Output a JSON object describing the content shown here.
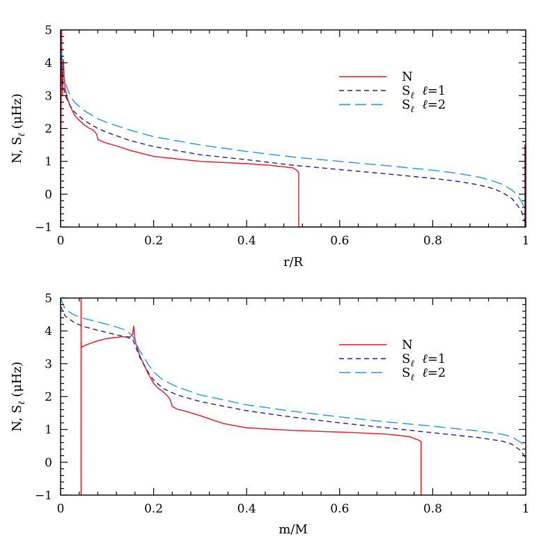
{
  "chart_data": [
    {
      "type": "line",
      "xlabel": "r/R",
      "ylabel": "N, Sℓ (μHz)",
      "xlim": [
        0,
        1
      ],
      "ylim": [
        -1,
        5
      ],
      "xticks": [
        0,
        0.2,
        0.4,
        0.6,
        0.8,
        1
      ],
      "xtick_labels": [
        "0",
        "0.2",
        "0.4",
        "0.6",
        "0.8",
        "1"
      ],
      "yticks": [
        -1,
        0,
        1,
        2,
        3,
        4,
        5
      ],
      "ytick_labels": [
        "−1",
        "0",
        "1",
        "2",
        "3",
        "4",
        "5"
      ],
      "legend_position": "upper-right",
      "series": [
        {
          "name": "N",
          "color": "#e8141c",
          "dash": "solid",
          "x": [
            0,
            0.002,
            0.004,
            0.006,
            0.008,
            0.01,
            0.015,
            0.02,
            0.03,
            0.04,
            0.05,
            0.06,
            0.07,
            0.075,
            0.078,
            0.08,
            0.09,
            0.1,
            0.12,
            0.15,
            0.2,
            0.3,
            0.4,
            0.45,
            0.5,
            0.51,
            0.512,
            0.512,
            0.514,
            0.514,
            0.998,
            0.998,
            1.0
          ],
          "y": [
            -1,
            5,
            3,
            4.1,
            3.5,
            3.2,
            2.9,
            2.7,
            2.4,
            2.25,
            2.12,
            2.02,
            1.95,
            1.88,
            1.8,
            1.67,
            1.6,
            1.55,
            1.47,
            1.33,
            1.15,
            1.0,
            0.93,
            0.88,
            0.8,
            0.7,
            0.65,
            -1.0,
            -1.0,
            -1.0,
            -1.0,
            1.5,
            -1.0
          ]
        },
        {
          "name": "Sℓ ℓ=1",
          "color": "#1e1e96",
          "dash": "short-dash",
          "x": [
            0,
            0.005,
            0.01,
            0.02,
            0.03,
            0.05,
            0.08,
            0.1,
            0.15,
            0.2,
            0.3,
            0.4,
            0.5,
            0.6,
            0.7,
            0.8,
            0.85,
            0.9,
            0.93,
            0.95,
            0.97,
            0.98,
            0.99,
            1.0
          ],
          "y": [
            4.5,
            3.4,
            3.0,
            2.7,
            2.5,
            2.25,
            2.0,
            1.88,
            1.63,
            1.45,
            1.2,
            1.05,
            0.88,
            0.75,
            0.62,
            0.48,
            0.4,
            0.28,
            0.17,
            0.05,
            -0.13,
            -0.3,
            -0.5,
            -0.9
          ]
        },
        {
          "name": "Sℓ ℓ=2",
          "color": "#1e96e6",
          "dash": "long-dash",
          "x": [
            0,
            0.005,
            0.01,
            0.02,
            0.03,
            0.05,
            0.08,
            0.1,
            0.15,
            0.2,
            0.3,
            0.4,
            0.5,
            0.6,
            0.7,
            0.8,
            0.85,
            0.9,
            0.93,
            0.95,
            0.97,
            0.98,
            0.99,
            1.0
          ],
          "y": [
            4.8,
            3.8,
            3.4,
            3.0,
            2.8,
            2.55,
            2.3,
            2.18,
            1.95,
            1.75,
            1.5,
            1.3,
            1.13,
            1.0,
            0.87,
            0.73,
            0.64,
            0.52,
            0.4,
            0.3,
            0.13,
            0.0,
            -0.2,
            -0.5
          ]
        }
      ]
    },
    {
      "type": "line",
      "xlabel": "m/M",
      "ylabel": "N, Sℓ (μHz)",
      "xlim": [
        0,
        1
      ],
      "ylim": [
        -1,
        5
      ],
      "xticks": [
        0,
        0.2,
        0.4,
        0.6,
        0.8,
        1
      ],
      "xtick_labels": [
        "0",
        "0.2",
        "0.4",
        "0.6",
        "0.8",
        "1"
      ],
      "yticks": [
        -1,
        0,
        1,
        2,
        3,
        4,
        5
      ],
      "ytick_labels": [
        "−1",
        "0",
        "1",
        "2",
        "3",
        "4",
        "5"
      ],
      "legend_position": "upper-right",
      "series": [
        {
          "name": "N",
          "color": "#e8141c",
          "dash": "solid",
          "x": [
            0.044,
            0.044,
            0.044,
            0.046,
            0.06,
            0.08,
            0.1,
            0.13,
            0.15,
            0.155,
            0.157,
            0.159,
            0.161,
            0.17,
            0.18,
            0.19,
            0.2,
            0.21,
            0.22,
            0.23,
            0.235,
            0.24,
            0.25,
            0.27,
            0.3,
            0.35,
            0.4,
            0.5,
            0.6,
            0.7,
            0.75,
            0.77,
            0.775,
            0.775
          ],
          "y": [
            -1,
            5,
            3.45,
            3.52,
            3.6,
            3.7,
            3.77,
            3.82,
            3.82,
            3.9,
            4.15,
            3.85,
            3.65,
            3.25,
            2.95,
            2.65,
            2.4,
            2.25,
            2.15,
            2.02,
            1.92,
            1.7,
            1.62,
            1.55,
            1.42,
            1.18,
            1.05,
            0.97,
            0.92,
            0.86,
            0.78,
            0.67,
            0.63,
            -1.0
          ]
        },
        {
          "name": "Sℓ ℓ=1",
          "color": "#1e1e96",
          "dash": "short-dash",
          "x": [
            0,
            0.01,
            0.03,
            0.05,
            0.08,
            0.1,
            0.12,
            0.14,
            0.155,
            0.17,
            0.19,
            0.2,
            0.22,
            0.25,
            0.3,
            0.4,
            0.5,
            0.6,
            0.7,
            0.8,
            0.9,
            0.95,
            0.97,
            0.99,
            1.0
          ],
          "y": [
            4.75,
            4.45,
            4.25,
            4.13,
            4.02,
            3.95,
            3.88,
            3.82,
            3.75,
            3.2,
            2.7,
            2.5,
            2.25,
            2.05,
            1.85,
            1.57,
            1.37,
            1.2,
            1.05,
            0.9,
            0.75,
            0.64,
            0.55,
            0.35,
            0.12
          ]
        },
        {
          "name": "Sℓ ℓ=2",
          "color": "#1e96e6",
          "dash": "long-dash",
          "x": [
            0,
            0.01,
            0.03,
            0.05,
            0.08,
            0.1,
            0.12,
            0.14,
            0.155,
            0.17,
            0.19,
            0.2,
            0.22,
            0.25,
            0.3,
            0.4,
            0.5,
            0.6,
            0.7,
            0.8,
            0.9,
            0.95,
            0.97,
            0.99,
            1.0
          ],
          "y": [
            5.0,
            4.65,
            4.48,
            4.38,
            4.27,
            4.2,
            4.12,
            4.02,
            3.85,
            3.4,
            2.95,
            2.75,
            2.5,
            2.3,
            2.05,
            1.75,
            1.55,
            1.38,
            1.23,
            1.1,
            0.95,
            0.85,
            0.77,
            0.6,
            0.42
          ]
        }
      ]
    }
  ]
}
